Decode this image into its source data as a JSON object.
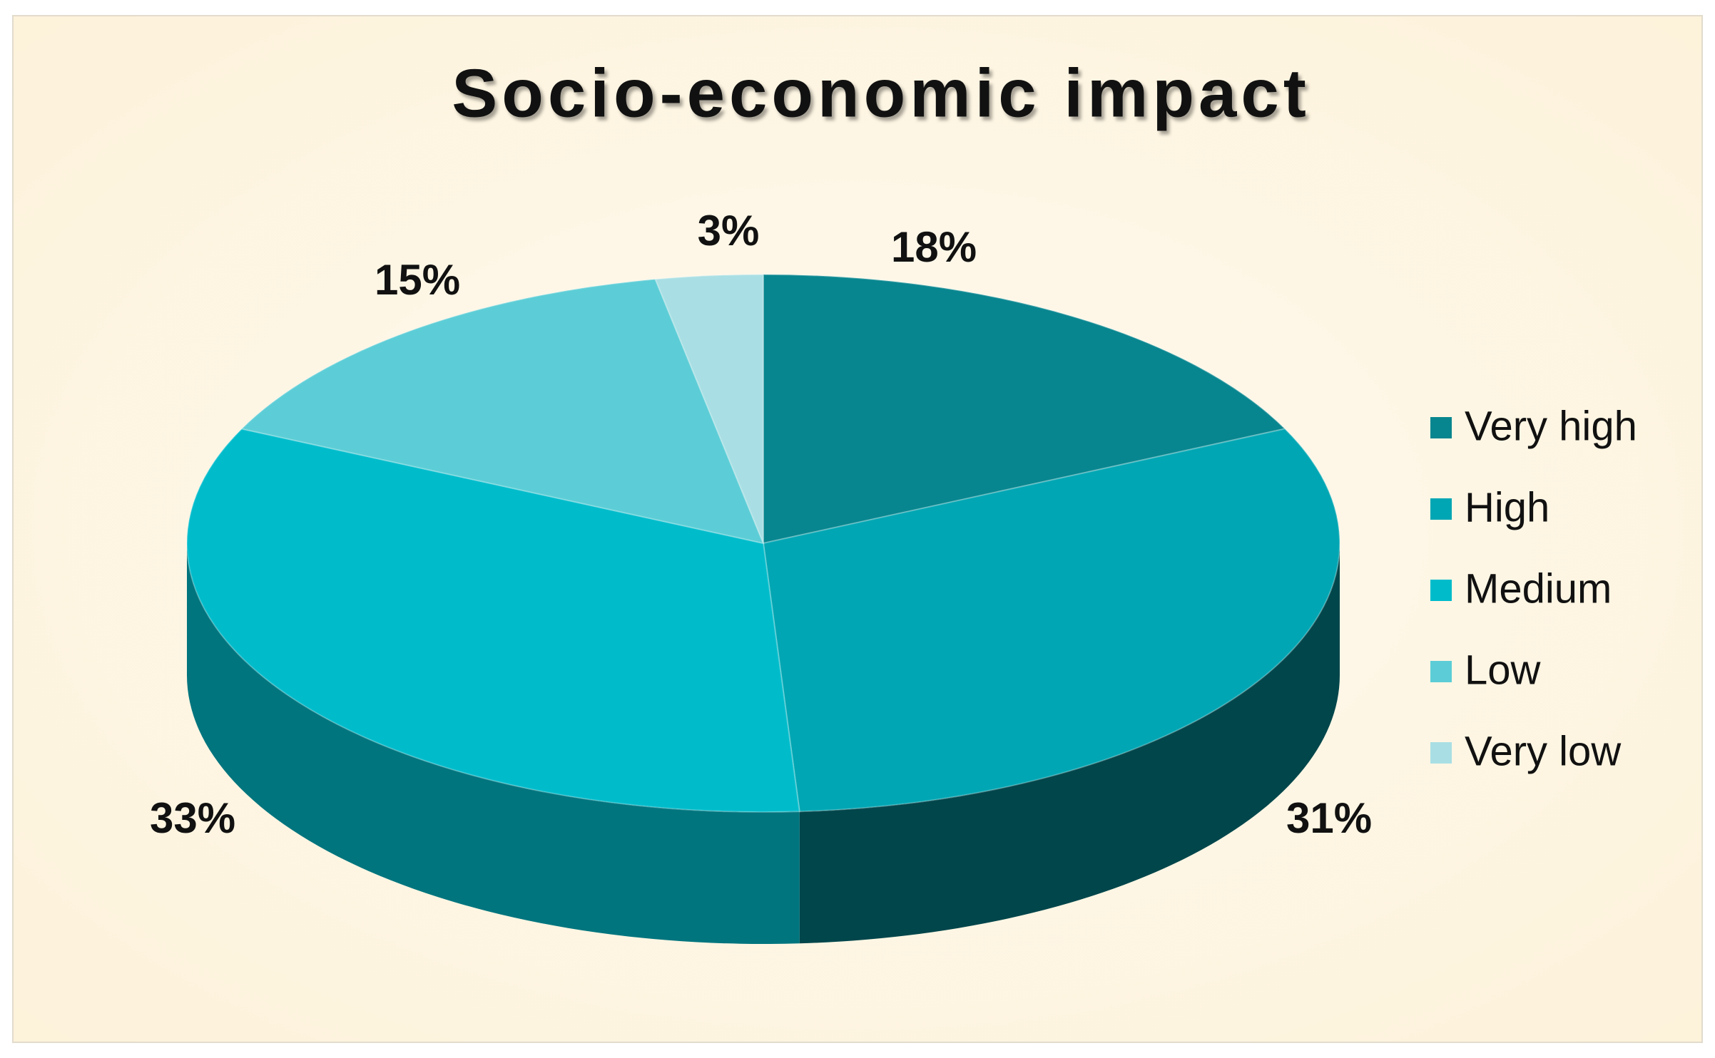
{
  "chart_data": {
    "type": "pie",
    "title": "Socio-economic impact",
    "categories": [
      "Very high",
      "High",
      "Medium",
      "Low",
      "Very low"
    ],
    "values": [
      18,
      31,
      33,
      15,
      3
    ],
    "value_labels": [
      "18%",
      "31%",
      "33%",
      "15%",
      "3%"
    ],
    "colors": [
      "#08868f",
      "#00a6b3",
      "#00bccb",
      "#5ccdd6",
      "#a9dfe4"
    ],
    "legend": "right"
  }
}
